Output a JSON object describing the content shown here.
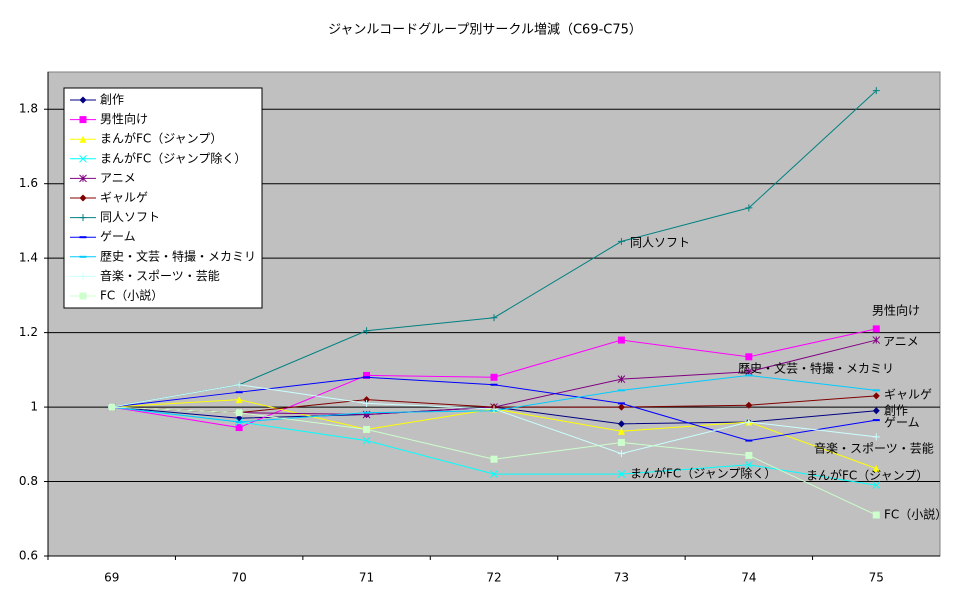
{
  "chart_data": {
    "type": "line",
    "title": "ジャンルコードグループ別サークル増減（C69-C75）",
    "categories": [
      "69",
      "70",
      "71",
      "72",
      "73",
      "74",
      "75"
    ],
    "ylim": [
      0.6,
      1.9
    ],
    "yticks": [
      0.6,
      0.8,
      1,
      1.2,
      1.4,
      1.6,
      1.8
    ],
    "grid": true,
    "series": [
      {
        "name": "創作",
        "color": "#000080",
        "marker": "diamond",
        "values": [
          1,
          0.97,
          0.98,
          1.0,
          0.955,
          0.96,
          0.99
        ]
      },
      {
        "name": "男性向け",
        "color": "#ff00ff",
        "marker": "square",
        "values": [
          1,
          0.945,
          1.085,
          1.08,
          1.18,
          1.135,
          1.21
        ]
      },
      {
        "name": "まんがFC（ジャンプ）",
        "color": "#ffff00",
        "marker": "triangle",
        "values": [
          1,
          1.02,
          0.94,
          0.995,
          0.935,
          0.96,
          0.835
        ]
      },
      {
        "name": "まんがFC（ジャンプ除く）",
        "color": "#00ffff",
        "marker": "x",
        "values": [
          1,
          0.96,
          0.91,
          0.82,
          0.82,
          0.845,
          0.79
        ]
      },
      {
        "name": "アニメ",
        "color": "#800080",
        "marker": "star",
        "values": [
          1,
          0.985,
          0.98,
          1.0,
          1.075,
          1.095,
          1.18
        ]
      },
      {
        "name": "ギャルゲ",
        "color": "#800000",
        "marker": "diamond",
        "values": [
          1,
          0.985,
          1.02,
          1.0,
          1.0,
          1.005,
          1.03
        ]
      },
      {
        "name": "同人ソフト",
        "color": "#008080",
        "marker": "plus",
        "values": [
          1,
          1.06,
          1.205,
          1.24,
          1.445,
          1.535,
          1.85
        ]
      },
      {
        "name": "ゲーム",
        "color": "#0000ff",
        "marker": "dash",
        "values": [
          1,
          1.04,
          1.08,
          1.06,
          1.01,
          0.91,
          0.965
        ]
      },
      {
        "name": "歴史・文芸・特撮・メカミリ",
        "color": "#00ccff",
        "marker": "dash",
        "values": [
          1,
          0.96,
          0.985,
          0.99,
          1.045,
          1.085,
          1.045
        ]
      },
      {
        "name": "音楽・スポーツ・芸能",
        "color": "#ccffff",
        "marker": "plus",
        "values": [
          1,
          1.06,
          1.01,
          0.995,
          0.875,
          0.96,
          0.92
        ]
      },
      {
        "name": "FC（小説）",
        "color": "#ccffcc",
        "marker": "square",
        "values": [
          1,
          0.985,
          0.94,
          0.86,
          0.905,
          0.87,
          0.71
        ]
      }
    ]
  }
}
